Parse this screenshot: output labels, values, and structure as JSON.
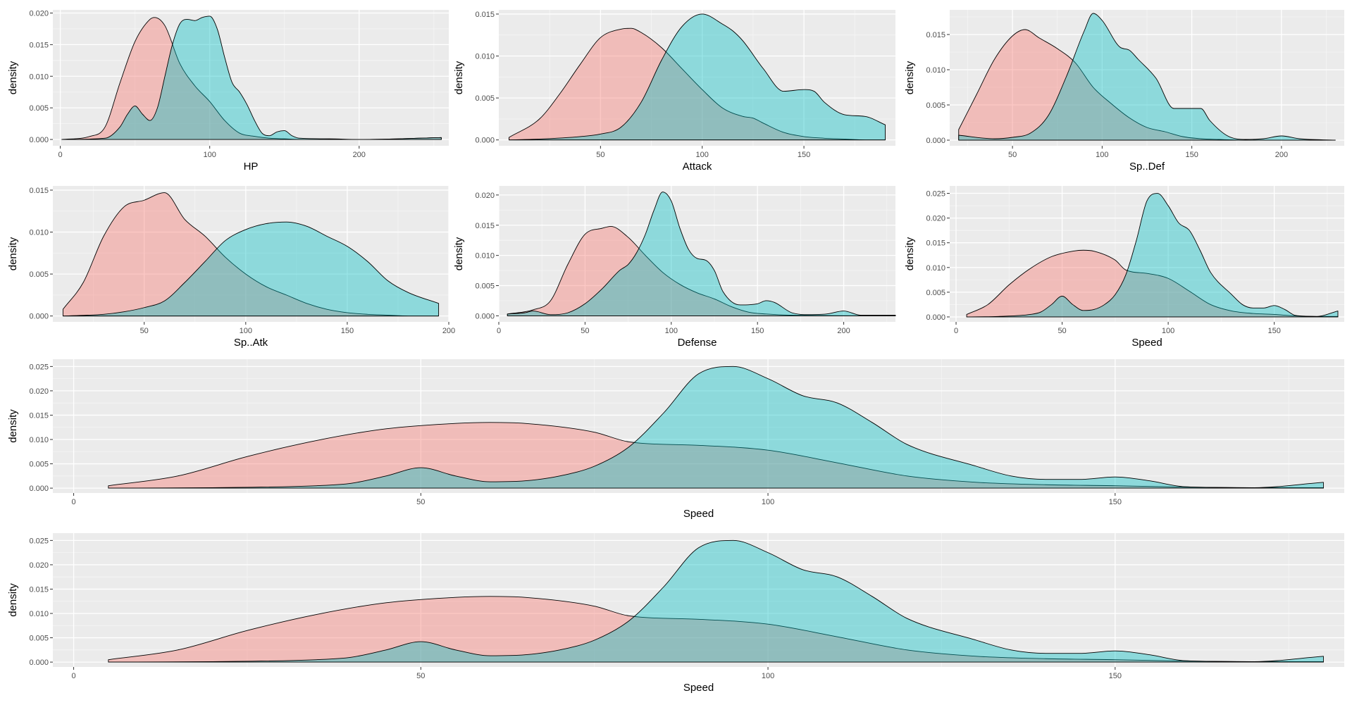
{
  "colors": {
    "panel_bg": "#ebebeb",
    "grid_major": "#ffffff",
    "grid_minor": "#f5f5f5",
    "series_a_fill": "#f8766d",
    "series_b_fill": "#00bfc4",
    "outline": "#000000",
    "tick_text": "#4d4d4d"
  },
  "chart_data": [
    {
      "type": "area",
      "xlabel": "HP",
      "ylabel": "density",
      "xlim": [
        -5,
        260
      ],
      "ylim": [
        -0.001,
        0.0205
      ],
      "xticks": [
        0,
        100,
        200
      ],
      "yticks": [
        0.0,
        0.005,
        0.01,
        0.015,
        0.02
      ],
      "ytick_labels": [
        "0.000",
        "0.005",
        "0.010",
        "0.015",
        "0.020"
      ],
      "series": [
        {
          "x": [
            1,
            20,
            30,
            40,
            50,
            60,
            63,
            70,
            80,
            90,
            100,
            110,
            120,
            130,
            140,
            150,
            160,
            200,
            255
          ],
          "values": [
            0.0,
            0.0005,
            0.002,
            0.009,
            0.0155,
            0.019,
            0.0193,
            0.018,
            0.012,
            0.0085,
            0.006,
            0.003,
            0.001,
            0.0005,
            0.0002,
            0.0001,
            0.0,
            0.0,
            0.0003
          ]
        },
        {
          "x": [
            1,
            30,
            40,
            45,
            50,
            55,
            60,
            65,
            70,
            75,
            80,
            85,
            90,
            95,
            100,
            105,
            110,
            115,
            120,
            125,
            130,
            135,
            140,
            145,
            150,
            155,
            160,
            180,
            200,
            255
          ],
          "values": [
            0.0,
            0.0002,
            0.002,
            0.004,
            0.0053,
            0.004,
            0.003,
            0.005,
            0.01,
            0.015,
            0.0183,
            0.019,
            0.0188,
            0.0193,
            0.0195,
            0.0175,
            0.013,
            0.009,
            0.0075,
            0.0055,
            0.003,
            0.001,
            0.0006,
            0.0012,
            0.0014,
            0.0006,
            0.0002,
            0.0001,
            0.0,
            0.0003
          ]
        }
      ]
    },
    {
      "type": "area",
      "xlabel": "Attack",
      "ylabel": "density",
      "xlim": [
        0,
        195
      ],
      "ylim": [
        -0.0007,
        0.0155
      ],
      "xticks": [
        50,
        100,
        150
      ],
      "yticks": [
        0.0,
        0.005,
        0.01,
        0.015
      ],
      "ytick_labels": [
        "0.000",
        "0.005",
        "0.010",
        "0.015"
      ],
      "series": [
        {
          "x": [
            5,
            20,
            30,
            40,
            50,
            60,
            65,
            70,
            80,
            90,
            100,
            110,
            120,
            125,
            130,
            140,
            150,
            160,
            170,
            180,
            190
          ],
          "values": [
            0.0003,
            0.0025,
            0.0055,
            0.009,
            0.0122,
            0.0132,
            0.0133,
            0.0128,
            0.011,
            0.0085,
            0.006,
            0.0038,
            0.0028,
            0.0026,
            0.002,
            0.0009,
            0.0004,
            0.0002,
            0.0001,
            0.0,
            0.0
          ]
        },
        {
          "x": [
            5,
            20,
            40,
            50,
            60,
            70,
            80,
            90,
            100,
            110,
            115,
            120,
            130,
            140,
            150,
            155,
            160,
            170,
            180,
            190
          ],
          "values": [
            0.0,
            0.0001,
            0.0004,
            0.0007,
            0.0015,
            0.0045,
            0.0095,
            0.0135,
            0.015,
            0.0138,
            0.013,
            0.0118,
            0.0085,
            0.0058,
            0.006,
            0.0058,
            0.0045,
            0.003,
            0.0028,
            0.0018
          ]
        }
      ]
    },
    {
      "type": "area",
      "xlabel": "Sp..Def",
      "ylabel": "density",
      "xlim": [
        15,
        235
      ],
      "ylim": [
        -0.0008,
        0.0185
      ],
      "xticks": [
        50,
        100,
        150,
        200
      ],
      "yticks": [
        0.0,
        0.005,
        0.01,
        0.015
      ],
      "ytick_labels": [
        "0.000",
        "0.005",
        "0.010",
        "0.015"
      ],
      "series": [
        {
          "x": [
            20,
            30,
            40,
            50,
            57,
            65,
            75,
            85,
            95,
            105,
            115,
            125,
            135,
            145,
            155,
            165,
            180,
            200,
            230
          ],
          "values": [
            0.0015,
            0.0065,
            0.0115,
            0.0148,
            0.0157,
            0.0145,
            0.013,
            0.011,
            0.0075,
            0.0052,
            0.0032,
            0.0018,
            0.0012,
            0.0005,
            0.0002,
            0.0001,
            0.0,
            0.0,
            0.0
          ]
        },
        {
          "x": [
            20,
            40,
            50,
            60,
            70,
            80,
            90,
            95,
            100,
            110,
            115,
            120,
            130,
            140,
            150,
            155,
            160,
            170,
            180,
            190,
            200,
            210,
            230
          ],
          "values": [
            0.0007,
            0.0002,
            0.0004,
            0.001,
            0.0035,
            0.009,
            0.0155,
            0.018,
            0.017,
            0.0132,
            0.0128,
            0.0115,
            0.0088,
            0.0045,
            0.0045,
            0.0045,
            0.0028,
            0.0006,
            0.0001,
            0.0002,
            0.0006,
            0.0002,
            0.0
          ]
        }
      ]
    },
    {
      "type": "area",
      "xlabel": "Sp..Atk",
      "ylabel": "density",
      "xlim": [
        5,
        200
      ],
      "ylim": [
        -0.0007,
        0.0155
      ],
      "xticks": [
        50,
        100,
        150,
        200
      ],
      "yticks": [
        0.0,
        0.005,
        0.01,
        0.015
      ],
      "ytick_labels": [
        "0.000",
        "0.005",
        "0.010",
        "0.015"
      ],
      "series": [
        {
          "x": [
            10,
            20,
            30,
            40,
            50,
            60,
            70,
            80,
            90,
            100,
            110,
            120,
            130,
            140,
            150,
            160,
            170,
            180,
            195
          ],
          "values": [
            0.0008,
            0.004,
            0.0095,
            0.013,
            0.0138,
            0.0147,
            0.0115,
            0.0095,
            0.007,
            0.005,
            0.0035,
            0.0025,
            0.0015,
            0.0008,
            0.0004,
            0.0002,
            0.0001,
            0.0,
            0.0
          ]
        },
        {
          "x": [
            10,
            30,
            40,
            50,
            60,
            70,
            80,
            90,
            100,
            110,
            120,
            130,
            140,
            150,
            160,
            170,
            180,
            195
          ],
          "values": [
            0.0,
            0.0002,
            0.0005,
            0.001,
            0.0018,
            0.004,
            0.0065,
            0.009,
            0.0103,
            0.011,
            0.0112,
            0.0107,
            0.0095,
            0.0083,
            0.0065,
            0.0042,
            0.0028,
            0.0015
          ]
        }
      ]
    },
    {
      "type": "area",
      "xlabel": "Defense",
      "ylabel": "density",
      "xlim": [
        0,
        230
      ],
      "ylim": [
        -0.001,
        0.0215
      ],
      "xticks": [
        0,
        50,
        100,
        150,
        200
      ],
      "yticks": [
        0.0,
        0.005,
        0.01,
        0.015,
        0.02
      ],
      "ytick_labels": [
        "0.000",
        "0.005",
        "0.010",
        "0.015",
        "0.020"
      ],
      "series": [
        {
          "x": [
            5,
            20,
            30,
            40,
            50,
            60,
            65,
            75,
            85,
            95,
            105,
            115,
            125,
            135,
            145,
            155,
            170,
            230
          ],
          "values": [
            0.0003,
            0.001,
            0.0025,
            0.0085,
            0.0135,
            0.0145,
            0.0148,
            0.013,
            0.01,
            0.0072,
            0.0052,
            0.0038,
            0.0028,
            0.0015,
            0.0006,
            0.0003,
            0.0001,
            0.0
          ]
        },
        {
          "x": [
            5,
            15,
            20,
            30,
            40,
            50,
            60,
            70,
            75,
            80,
            85,
            90,
            95,
            100,
            105,
            110,
            115,
            120,
            125,
            130,
            140,
            150,
            155,
            160,
            170,
            180,
            190,
            200,
            210,
            230
          ],
          "values": [
            0.0003,
            0.0005,
            0.0008,
            0.0002,
            0.0005,
            0.002,
            0.0045,
            0.0075,
            0.0085,
            0.0105,
            0.0135,
            0.0175,
            0.0205,
            0.019,
            0.0145,
            0.011,
            0.0095,
            0.0092,
            0.0075,
            0.004,
            0.0018,
            0.002,
            0.0025,
            0.0022,
            0.0005,
            0.0002,
            0.0003,
            0.0008,
            0.0001,
            0.0001
          ]
        }
      ]
    },
    {
      "type": "area",
      "xlabel": "Speed",
      "ylabel": "density",
      "xlim": [
        -3,
        183
      ],
      "ylim": [
        -0.001,
        0.0265
      ],
      "xticks": [
        0,
        50,
        100,
        150
      ],
      "yticks": [
        0.0,
        0.005,
        0.01,
        0.015,
        0.02,
        0.025
      ],
      "ytick_labels": [
        "0.000",
        "0.005",
        "0.010",
        "0.015",
        "0.020",
        "0.025"
      ],
      "series": [
        {
          "x": [
            5,
            15,
            25,
            35,
            45,
            55,
            60,
            65,
            75,
            80,
            90,
            100,
            110,
            120,
            130,
            140,
            150,
            160,
            170,
            180
          ],
          "values": [
            0.0005,
            0.0025,
            0.0065,
            0.0098,
            0.0122,
            0.0133,
            0.0135,
            0.0133,
            0.0115,
            0.0095,
            0.0088,
            0.0078,
            0.0052,
            0.0025,
            0.0012,
            0.0007,
            0.0005,
            0.0002,
            0.0001,
            0.0001
          ]
        },
        {
          "x": [
            5,
            20,
            35,
            40,
            45,
            50,
            55,
            60,
            65,
            70,
            75,
            80,
            85,
            90,
            95,
            100,
            105,
            110,
            115,
            120,
            130,
            135,
            140,
            145,
            150,
            155,
            160,
            170,
            180
          ],
          "values": [
            0.0,
            0.0001,
            0.0005,
            0.001,
            0.0025,
            0.0042,
            0.0025,
            0.0013,
            0.0015,
            0.0025,
            0.0045,
            0.0085,
            0.0155,
            0.0235,
            0.025,
            0.0225,
            0.019,
            0.0175,
            0.0135,
            0.009,
            0.0045,
            0.0025,
            0.0018,
            0.0018,
            0.0023,
            0.0015,
            0.0003,
            0.0001,
            0.0012
          ]
        }
      ]
    },
    {
      "type": "area",
      "xlabel": "Speed",
      "ylabel": "density",
      "xlim": [
        -3,
        183
      ],
      "ylim": [
        -0.001,
        0.0265
      ],
      "xticks": [
        0,
        50,
        100,
        150
      ],
      "yticks": [
        0.0,
        0.005,
        0.01,
        0.015,
        0.02,
        0.025
      ],
      "ytick_labels": [
        "0.000",
        "0.005",
        "0.010",
        "0.015",
        "0.020",
        "0.025"
      ],
      "series": [
        {
          "x": [
            5,
            15,
            25,
            35,
            45,
            55,
            60,
            65,
            75,
            80,
            90,
            100,
            110,
            120,
            130,
            140,
            150,
            160,
            170,
            180
          ],
          "values": [
            0.0005,
            0.0025,
            0.0065,
            0.0098,
            0.0122,
            0.0133,
            0.0135,
            0.0133,
            0.0115,
            0.0095,
            0.0088,
            0.0078,
            0.0052,
            0.0025,
            0.0012,
            0.0007,
            0.0005,
            0.0002,
            0.0001,
            0.0001
          ]
        },
        {
          "x": [
            5,
            20,
            35,
            40,
            45,
            50,
            55,
            60,
            65,
            70,
            75,
            80,
            85,
            90,
            95,
            100,
            105,
            110,
            115,
            120,
            130,
            135,
            140,
            145,
            150,
            155,
            160,
            170,
            180
          ],
          "values": [
            0.0,
            0.0001,
            0.0005,
            0.001,
            0.0025,
            0.0042,
            0.0025,
            0.0013,
            0.0015,
            0.0025,
            0.0045,
            0.0085,
            0.0155,
            0.0235,
            0.025,
            0.0225,
            0.019,
            0.0175,
            0.0135,
            0.009,
            0.0045,
            0.0025,
            0.0018,
            0.0018,
            0.0023,
            0.0015,
            0.0003,
            0.0001,
            0.0012
          ]
        }
      ]
    },
    {
      "type": "area",
      "xlabel": "Speed",
      "ylabel": "density",
      "xlim": [
        -3,
        183
      ],
      "ylim": [
        -0.001,
        0.0265
      ],
      "xticks": [
        0,
        50,
        100,
        150
      ],
      "yticks": [
        0.0,
        0.005,
        0.01,
        0.015,
        0.02,
        0.025
      ],
      "ytick_labels": [
        "0.000",
        "0.005",
        "0.010",
        "0.015",
        "0.020",
        "0.025"
      ],
      "series": [
        {
          "x": [
            5,
            15,
            25,
            35,
            45,
            55,
            60,
            65,
            75,
            80,
            90,
            100,
            110,
            120,
            130,
            140,
            150,
            160,
            170,
            180
          ],
          "values": [
            0.0005,
            0.0025,
            0.0065,
            0.0098,
            0.0122,
            0.0133,
            0.0135,
            0.0133,
            0.0115,
            0.0095,
            0.0088,
            0.0078,
            0.0052,
            0.0025,
            0.0012,
            0.0007,
            0.0005,
            0.0002,
            0.0001,
            0.0001
          ]
        },
        {
          "x": [
            5,
            20,
            35,
            40,
            45,
            50,
            55,
            60,
            65,
            70,
            75,
            80,
            85,
            90,
            95,
            100,
            105,
            110,
            115,
            120,
            130,
            135,
            140,
            145,
            150,
            155,
            160,
            170,
            180
          ],
          "values": [
            0.0,
            0.0001,
            0.0005,
            0.001,
            0.0025,
            0.0042,
            0.0025,
            0.0013,
            0.0015,
            0.0025,
            0.0045,
            0.0085,
            0.0155,
            0.0235,
            0.025,
            0.0225,
            0.019,
            0.0175,
            0.0135,
            0.009,
            0.0045,
            0.0025,
            0.0018,
            0.0018,
            0.0023,
            0.0015,
            0.0003,
            0.0001,
            0.0012
          ]
        }
      ]
    }
  ]
}
